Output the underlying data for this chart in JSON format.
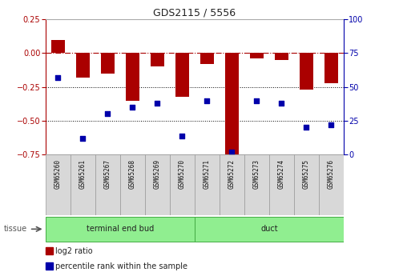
{
  "title": "GDS2115 / 5556",
  "samples": [
    "GSM65260",
    "GSM65261",
    "GSM65267",
    "GSM65268",
    "GSM65269",
    "GSM65270",
    "GSM65271",
    "GSM65272",
    "GSM65273",
    "GSM65274",
    "GSM65275",
    "GSM65276"
  ],
  "log2_ratio": [
    0.1,
    -0.18,
    -0.15,
    -0.35,
    -0.1,
    -0.32,
    -0.08,
    -0.78,
    -0.04,
    -0.05,
    -0.27,
    -0.22
  ],
  "percentile_rank": [
    57,
    12,
    30,
    35,
    38,
    14,
    40,
    2,
    40,
    38,
    20,
    22
  ],
  "tissue_groups": [
    {
      "label": "terminal end bud",
      "start": 0,
      "end": 6,
      "color": "#90EE90"
    },
    {
      "label": "duct",
      "start": 6,
      "end": 12,
      "color": "#90EE90"
    }
  ],
  "bar_color": "#AA0000",
  "dot_color": "#0000AA",
  "ymin": -0.75,
  "ymax": 0.25,
  "yticks_left": [
    0.25,
    0.0,
    -0.25,
    -0.5,
    -0.75
  ],
  "yticks_right": [
    100,
    75,
    50,
    25,
    0
  ],
  "hline_color": "#AA0000",
  "dotted_lines": [
    -0.25,
    -0.5
  ],
  "bg_color": "#ffffff",
  "plot_bg": "#ffffff",
  "legend_items": [
    {
      "label": "log2 ratio",
      "color": "#AA0000"
    },
    {
      "label": "percentile rank within the sample",
      "color": "#0000AA"
    }
  ],
  "tissue_label": "tissue",
  "sample_box_color": "#d8d8d8",
  "sample_box_edge": "#999999"
}
